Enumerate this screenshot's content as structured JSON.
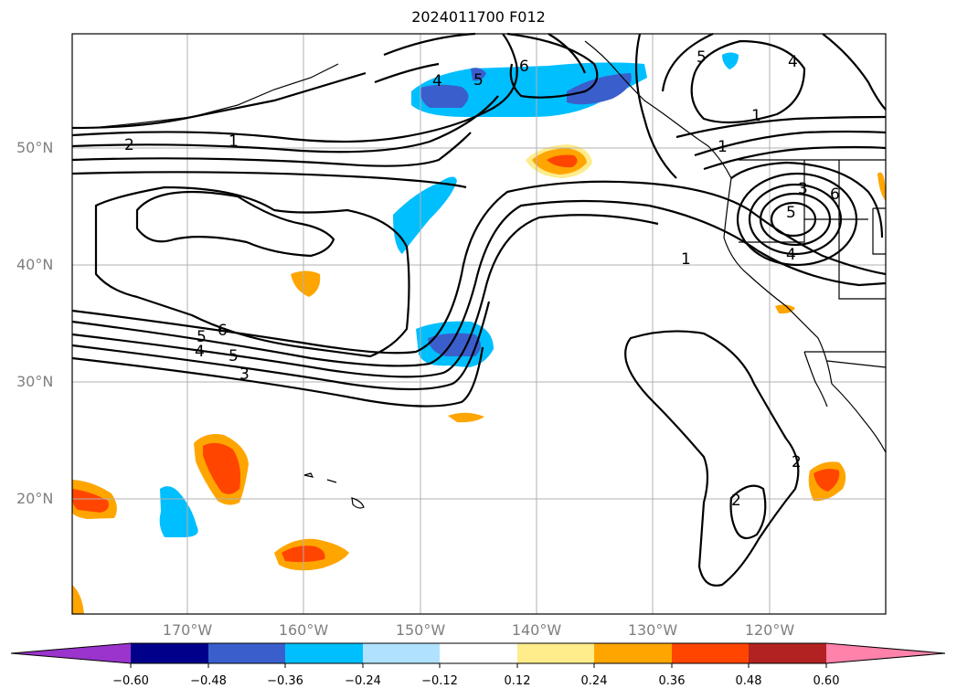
{
  "title": "2024011700 F012",
  "map": {
    "lat_labels": [
      "50°N",
      "40°N",
      "30°N",
      "20°N"
    ],
    "lon_labels": [
      "170°W",
      "160°W",
      "150°W",
      "140°W",
      "130°W",
      "120°W"
    ],
    "contour_labels": [
      "2",
      "1",
      "4",
      "5",
      "6",
      "5",
      "6",
      "5",
      "4",
      "3",
      "5",
      "4",
      "1",
      "1",
      "5",
      "6",
      "3",
      "4",
      "2",
      "1",
      "2"
    ]
  },
  "colorbar": {
    "ticks": [
      "−0.60",
      "−0.48",
      "−0.36",
      "−0.24",
      "−0.12",
      "0.12",
      "0.24",
      "0.36",
      "0.48",
      "0.60"
    ],
    "colors": [
      "#9a34cc",
      "#00008b",
      "#3a5fcd",
      "#00bfff",
      "#b0e2ff",
      "#ffffff",
      "#ffec8b",
      "#ffa500",
      "#ff4500",
      "#b22222",
      "#ff82ab"
    ]
  }
}
